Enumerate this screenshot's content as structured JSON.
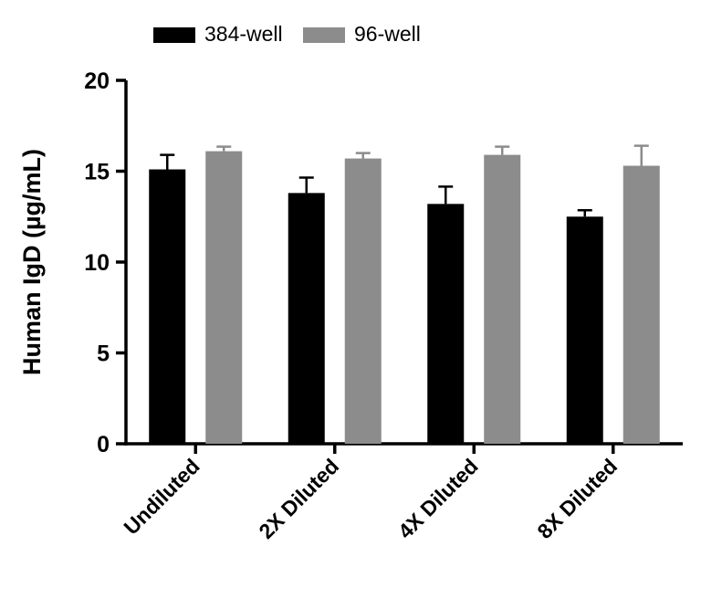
{
  "chart_data": {
    "type": "bar",
    "title": "",
    "xlabel": "",
    "ylabel": "Human IgD (µg/mL)",
    "ylim": [
      0,
      20
    ],
    "yticks": [
      0,
      5,
      10,
      15,
      20
    ],
    "grid": false,
    "legend_position": "top",
    "categories": [
      "Undiluted",
      "2X Diluted",
      "4X Diluted",
      "8X Diluted"
    ],
    "series": [
      {
        "name": "384-well",
        "color": "#000000",
        "values": [
          15.1,
          13.8,
          13.2,
          12.5
        ],
        "errors_up": [
          0.8,
          0.85,
          0.95,
          0.35
        ]
      },
      {
        "name": "96-well",
        "color": "#8c8c8c",
        "values": [
          16.1,
          15.7,
          15.9,
          15.3
        ],
        "errors_up": [
          0.25,
          0.3,
          0.45,
          1.1
        ]
      }
    ],
    "colors": {
      "axis": "#000000",
      "background": "#ffffff"
    }
  }
}
